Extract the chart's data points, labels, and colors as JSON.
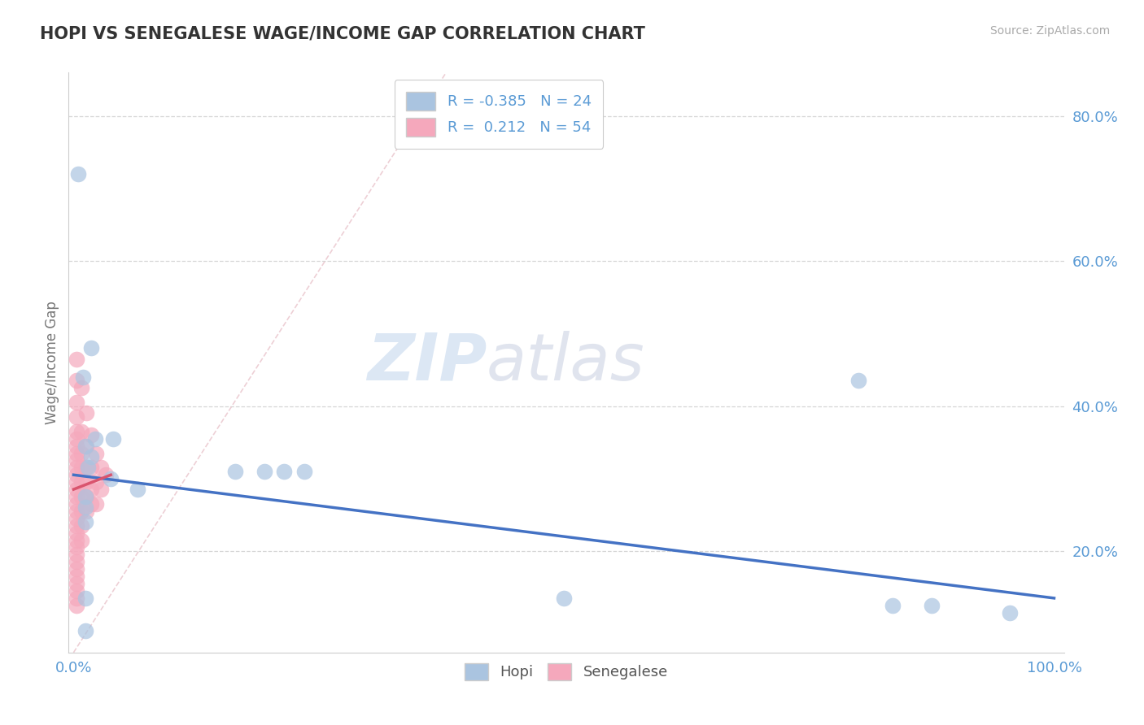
{
  "title": "HOPI VS SENEGALESE WAGE/INCOME GAP CORRELATION CHART",
  "source": "Source: ZipAtlas.com",
  "ylabel": "Wage/Income Gap",
  "watermark_zip": "ZIP",
  "watermark_atlas": "atlas",
  "hopi_R": -0.385,
  "hopi_N": 24,
  "senegalese_R": 0.212,
  "senegalese_N": 54,
  "hopi_color": "#aac4e0",
  "senegalese_color": "#f5a8bc",
  "hopi_line_color": "#4472c4",
  "senegalese_line_color": "#d9546e",
  "diagonal_color": "#e8c0c8",
  "hopi_points": [
    [
      0.005,
      0.72
    ],
    [
      0.018,
      0.48
    ],
    [
      0.01,
      0.44
    ],
    [
      0.022,
      0.355
    ],
    [
      0.04,
      0.355
    ],
    [
      0.012,
      0.345
    ],
    [
      0.018,
      0.33
    ],
    [
      0.015,
      0.315
    ],
    [
      0.165,
      0.31
    ],
    [
      0.195,
      0.31
    ],
    [
      0.215,
      0.31
    ],
    [
      0.235,
      0.31
    ],
    [
      0.038,
      0.3
    ],
    [
      0.065,
      0.285
    ],
    [
      0.012,
      0.275
    ],
    [
      0.012,
      0.26
    ],
    [
      0.012,
      0.24
    ],
    [
      0.012,
      0.135
    ],
    [
      0.012,
      0.09
    ],
    [
      0.5,
      0.135
    ],
    [
      0.8,
      0.435
    ],
    [
      0.835,
      0.125
    ],
    [
      0.875,
      0.125
    ],
    [
      0.955,
      0.115
    ]
  ],
  "senegalese_points": [
    [
      0.003,
      0.465
    ],
    [
      0.003,
      0.435
    ],
    [
      0.003,
      0.405
    ],
    [
      0.003,
      0.385
    ],
    [
      0.003,
      0.365
    ],
    [
      0.003,
      0.355
    ],
    [
      0.003,
      0.345
    ],
    [
      0.003,
      0.335
    ],
    [
      0.003,
      0.325
    ],
    [
      0.003,
      0.315
    ],
    [
      0.003,
      0.305
    ],
    [
      0.003,
      0.295
    ],
    [
      0.003,
      0.285
    ],
    [
      0.003,
      0.275
    ],
    [
      0.003,
      0.265
    ],
    [
      0.003,
      0.255
    ],
    [
      0.003,
      0.245
    ],
    [
      0.003,
      0.235
    ],
    [
      0.003,
      0.225
    ],
    [
      0.003,
      0.215
    ],
    [
      0.003,
      0.205
    ],
    [
      0.003,
      0.195
    ],
    [
      0.003,
      0.185
    ],
    [
      0.003,
      0.175
    ],
    [
      0.003,
      0.165
    ],
    [
      0.003,
      0.155
    ],
    [
      0.003,
      0.145
    ],
    [
      0.003,
      0.135
    ],
    [
      0.003,
      0.125
    ],
    [
      0.008,
      0.425
    ],
    [
      0.008,
      0.365
    ],
    [
      0.008,
      0.335
    ],
    [
      0.008,
      0.315
    ],
    [
      0.008,
      0.295
    ],
    [
      0.008,
      0.275
    ],
    [
      0.008,
      0.255
    ],
    [
      0.008,
      0.235
    ],
    [
      0.008,
      0.215
    ],
    [
      0.013,
      0.39
    ],
    [
      0.013,
      0.345
    ],
    [
      0.013,
      0.315
    ],
    [
      0.013,
      0.295
    ],
    [
      0.013,
      0.275
    ],
    [
      0.013,
      0.255
    ],
    [
      0.018,
      0.36
    ],
    [
      0.018,
      0.315
    ],
    [
      0.018,
      0.285
    ],
    [
      0.018,
      0.265
    ],
    [
      0.023,
      0.335
    ],
    [
      0.023,
      0.295
    ],
    [
      0.023,
      0.265
    ],
    [
      0.028,
      0.315
    ],
    [
      0.028,
      0.285
    ],
    [
      0.033,
      0.305
    ]
  ],
  "xlim": [
    -0.005,
    1.01
  ],
  "ylim": [
    0.06,
    0.86
  ],
  "yticks": [
    0.2,
    0.4,
    0.6,
    0.8
  ],
  "ytick_labels": [
    "20.0%",
    "40.0%",
    "60.0%",
    "80.0%"
  ],
  "xtick_positions": [
    0.0,
    1.0
  ],
  "xtick_labels": [
    "0.0%",
    "100.0%"
  ],
  "background_color": "#ffffff",
  "grid_color": "#cccccc",
  "title_color": "#333333",
  "tick_color": "#5b9bd5",
  "ylabel_color": "#777777"
}
